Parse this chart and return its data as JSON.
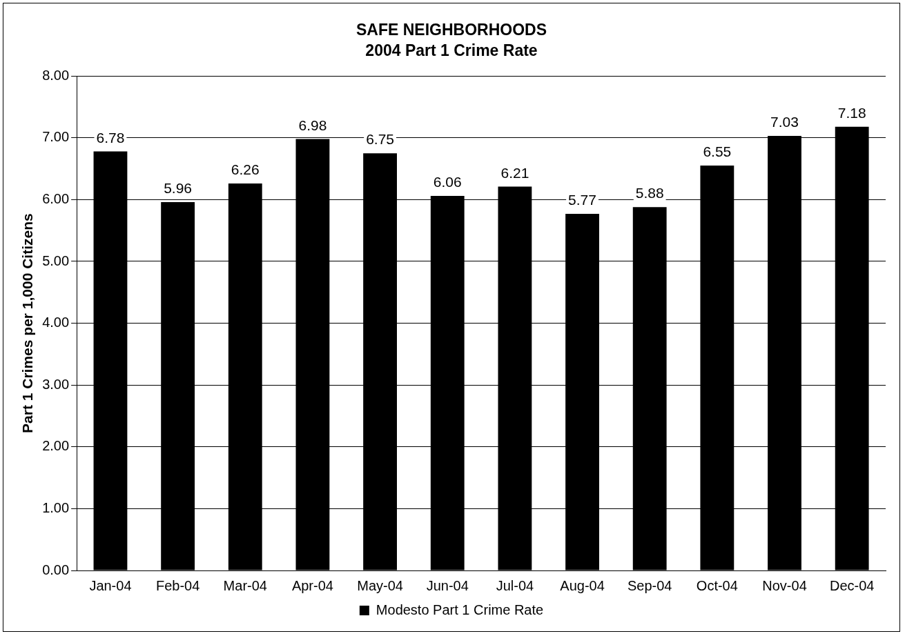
{
  "chart_data": {
    "type": "bar",
    "title": "SAFE NEIGHBORHOODS",
    "subtitle": "2004 Part 1 Crime Rate",
    "ylabel": "Part 1 Crimes per 1,000 Citizens",
    "categories": [
      "Jan-04",
      "Feb-04",
      "Mar-04",
      "Apr-04",
      "May-04",
      "Jun-04",
      "Jul-04",
      "Aug-04",
      "Sep-04",
      "Oct-04",
      "Nov-04",
      "Dec-04"
    ],
    "series": [
      {
        "name": "Modesto Part 1 Crime Rate",
        "color": "#000000",
        "values": [
          6.78,
          5.96,
          6.26,
          6.98,
          6.75,
          6.06,
          6.21,
          5.77,
          5.88,
          6.55,
          7.03,
          7.18
        ]
      }
    ],
    "ylim": [
      0,
      8
    ],
    "yticks": [
      {
        "value": 0,
        "label": "0.00"
      },
      {
        "value": 1,
        "label": "1.00"
      },
      {
        "value": 2,
        "label": "2.00"
      },
      {
        "value": 3,
        "label": "3.00"
      },
      {
        "value": 4,
        "label": "4.00"
      },
      {
        "value": 5,
        "label": "5.00"
      },
      {
        "value": 6,
        "label": "6.00"
      },
      {
        "value": 7,
        "label": "7.00"
      },
      {
        "value": 8,
        "label": "8.00"
      }
    ],
    "grid": "y",
    "legend": "bottom",
    "data_labels": true
  }
}
